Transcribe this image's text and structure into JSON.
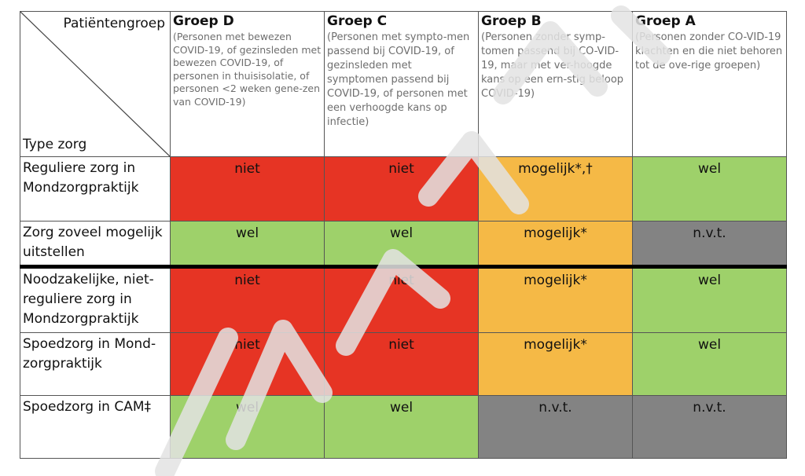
{
  "table": {
    "corner": {
      "top_label": "Patiëntengroep",
      "bottom_label": "Type zorg"
    },
    "columns": [
      {
        "title": "Groep D",
        "desc": "(Personen met bewezen COVID-19, of gezinsleden met bewezen COVID-19, of personen in thuisisolatie, of personen <2 weken gene-zen van COVID-19)"
      },
      {
        "title": "Groep C",
        "desc": "(Personen met sympto-men passend bij COVID-19, of gezinsleden met symptomen passend bij COVID-19, of personen met een verhoogde kans op infectie)"
      },
      {
        "title": "Groep B",
        "desc": "(Personen zonder symp-tomen passend bij CO-VID-19, maar met ver-hoogde kans op een ern-stig beloop COVID-19)"
      },
      {
        "title": "Groep A",
        "desc": "(Personen zonder CO-VID-19 klachten en die niet behoren tot de ove-rige groepen)"
      }
    ],
    "rows": [
      {
        "label": "Reguliere zorg in Mondzorgpraktijk",
        "cells": [
          "niet",
          "niet",
          "mogelijk*,†",
          "wel"
        ],
        "status": [
          "red",
          "red",
          "orange",
          "green"
        ]
      },
      {
        "label": "Zorg zoveel mogelijk uitstellen",
        "cells": [
          "wel",
          "wel",
          "mogelijk*",
          "n.v.t."
        ],
        "status": [
          "green",
          "green",
          "orange",
          "grey"
        ]
      },
      {
        "label": "Noodzakelijke, niet-reguliere zorg in Mondzorgpraktijk",
        "cells": [
          "niet",
          "niet",
          "mogelijk*",
          "wel"
        ],
        "status": [
          "red",
          "red",
          "orange",
          "green"
        ]
      },
      {
        "label": "Spoedzorg in Mond-zorgpraktijk",
        "cells": [
          "niet",
          "niet",
          "mogelijk*",
          "wel"
        ],
        "status": [
          "red",
          "red",
          "orange",
          "green"
        ]
      },
      {
        "label": "Spoedzorg in CAM‡",
        "cells": [
          "wel",
          "wel",
          "n.v.t.",
          "n.v.t."
        ],
        "status": [
          "green",
          "green",
          "grey",
          "grey"
        ]
      }
    ]
  },
  "colors": {
    "red": "#e63424",
    "green": "#9ed16a",
    "orange": "#f5b946",
    "grey": "#838383",
    "watermark": "#dcdcdc"
  }
}
